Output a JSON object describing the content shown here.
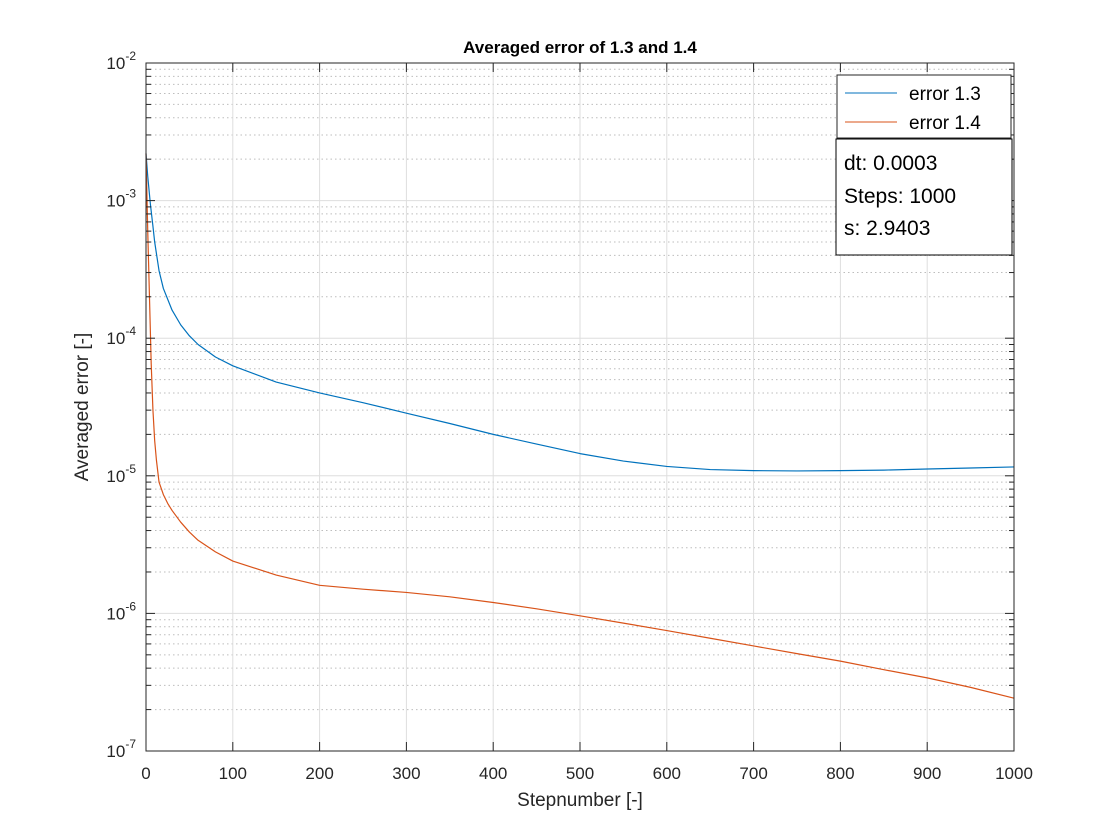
{
  "chart_data": {
    "type": "line",
    "title": "Averaged error of 1.3 and 1.4",
    "xlabel": "Stepnumber [-]",
    "ylabel": "Averaged error [-]",
    "xlim": [
      0,
      1000
    ],
    "ylim": [
      1e-07,
      0.01
    ],
    "yscale": "log",
    "grid": true,
    "minor_grid": true,
    "legend_position": "top-right",
    "xticks": [
      {
        "value": 0,
        "label": "0"
      },
      {
        "value": 100,
        "label": "100"
      },
      {
        "value": 200,
        "label": "200"
      },
      {
        "value": 300,
        "label": "300"
      },
      {
        "value": 400,
        "label": "400"
      },
      {
        "value": 500,
        "label": "500"
      },
      {
        "value": 600,
        "label": "600"
      },
      {
        "value": 700,
        "label": "700"
      },
      {
        "value": 800,
        "label": "800"
      },
      {
        "value": 900,
        "label": "900"
      },
      {
        "value": 1000,
        "label": "1000"
      }
    ],
    "yticks": [
      {
        "value": 1e-07,
        "base": "10",
        "exp": "-7"
      },
      {
        "value": 1e-06,
        "base": "10",
        "exp": "-6"
      },
      {
        "value": 1e-05,
        "base": "10",
        "exp": "-5"
      },
      {
        "value": 0.0001,
        "base": "10",
        "exp": "-4"
      },
      {
        "value": 0.001,
        "base": "10",
        "exp": "-3"
      },
      {
        "value": 0.01,
        "base": "10",
        "exp": "-2"
      }
    ],
    "series": [
      {
        "name": "error 1.3",
        "color": "#0072BD",
        "x": [
          0,
          2,
          5,
          8,
          10,
          15,
          20,
          30,
          40,
          50,
          60,
          80,
          100,
          150,
          200,
          250,
          300,
          350,
          400,
          450,
          500,
          550,
          600,
          650,
          700,
          750,
          800,
          850,
          900,
          950,
          1000
        ],
        "y": [
          0.0022,
          0.0015,
          0.00095,
          0.00065,
          0.0005,
          0.00031,
          0.00023,
          0.00016,
          0.000125,
          0.000104,
          9e-05,
          7.3e-05,
          6.3e-05,
          4.8e-05,
          4e-05,
          3.4e-05,
          2.85e-05,
          2.4e-05,
          2e-05,
          1.7e-05,
          1.45e-05,
          1.28e-05,
          1.17e-05,
          1.11e-05,
          1.09e-05,
          1.085e-05,
          1.09e-05,
          1.1e-05,
          1.12e-05,
          1.14e-05,
          1.16e-05
        ]
      },
      {
        "name": "error 1.4",
        "color": "#D95319",
        "x": [
          0,
          2,
          4,
          6,
          8,
          10,
          12,
          15,
          20,
          25,
          30,
          40,
          50,
          60,
          80,
          100,
          150,
          200,
          250,
          300,
          350,
          400,
          450,
          500,
          550,
          600,
          650,
          700,
          750,
          800,
          850,
          900,
          950,
          1000
        ],
        "y": [
          0.0022,
          0.0006,
          0.0002,
          6.5e-05,
          3e-05,
          1.8e-05,
          1.3e-05,
          9e-06,
          7.3e-06,
          6.3e-06,
          5.6e-06,
          4.6e-06,
          3.9e-06,
          3.4e-06,
          2.8e-06,
          2.4e-06,
          1.9e-06,
          1.6e-06,
          1.5e-06,
          1.42e-06,
          1.32e-06,
          1.2e-06,
          1.08e-06,
          9.6e-07,
          8.5e-07,
          7.5e-07,
          6.6e-07,
          5.8e-07,
          5.1e-07,
          4.5e-07,
          3.9e-07,
          3.4e-07,
          2.9e-07,
          2.42e-07
        ]
      }
    ],
    "annotation": {
      "lines": [
        "dt: 0.0003",
        "Steps: 1000",
        "s: 2.9403"
      ]
    }
  }
}
